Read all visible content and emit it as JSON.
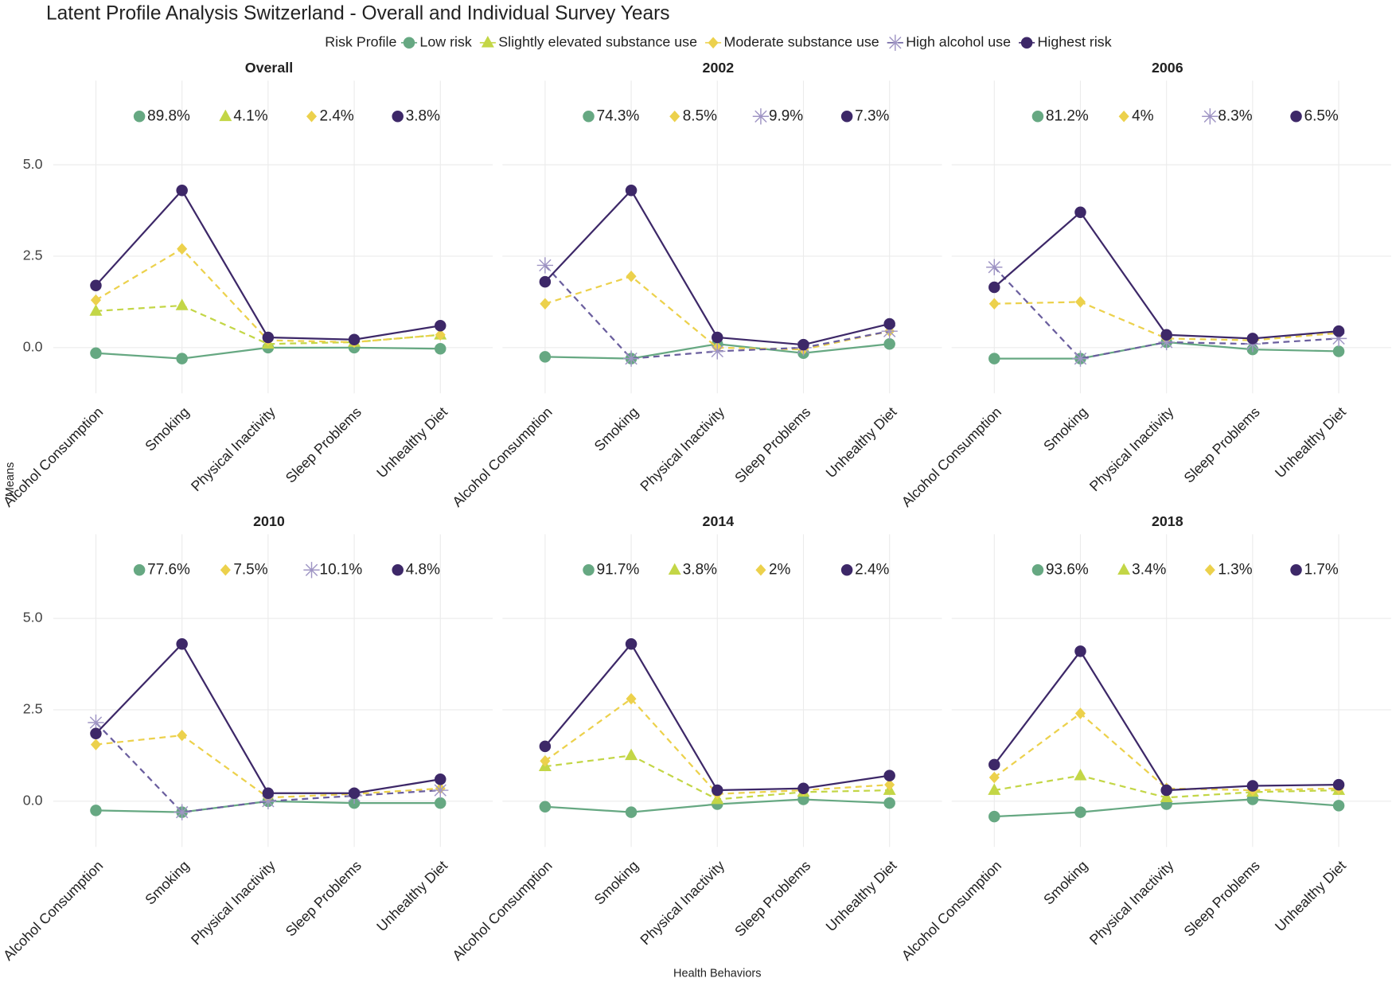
{
  "title": "Latent Profile Analysis Switzerland - Overall and Individual Survey Years",
  "legend_title": "Risk Profile",
  "x_label": "Health Behaviors",
  "y_label": "Means",
  "profiles": [
    {
      "name": "Low risk",
      "color": "#66a882",
      "shape": "circle",
      "dash": "solid"
    },
    {
      "name": "Slightly elevated substance use",
      "color": "#c3d646",
      "shape": "triangle",
      "dash": "dashed"
    },
    {
      "name": "Moderate substance use",
      "color": "#ecd14c",
      "shape": "diamond",
      "dash": "dashed"
    },
    {
      "name": "High alcohol use",
      "color": "#6a5e9e",
      "shape": "asterisk",
      "dash": "dashed"
    },
    {
      "name": "Highest risk",
      "color": "#3d2868",
      "shape": "circle",
      "dash": "solid"
    }
  ],
  "categories": [
    "Alcohol Consumption",
    "Smoking",
    "Physical Inactivity",
    "Sleep Problems",
    "Unhealthy Diet"
  ],
  "ylim": [
    -1.25,
    7.3
  ],
  "yticks": [
    {
      "value": 0,
      "label": "0.0"
    },
    2.5,
    {
      "value": 5,
      "label": "5.0"
    }
  ],
  "grid": true,
  "chart_data": [
    {
      "type": "line",
      "title": "Overall",
      "series": [
        {
          "values": [
            -0.15,
            -0.3,
            0,
            0,
            -0.03
          ],
          "share": 89.8,
          "share_label": "89.8%"
        },
        {
          "values": [
            1.0,
            1.15,
            0.1,
            0.15,
            0.35
          ],
          "share": 4.1,
          "share_label": "4.1%"
        },
        {
          "values": [
            1.3,
            2.7,
            0.2,
            0.15,
            0.35
          ],
          "share": 2.4,
          "share_label": "2.4%"
        },
        null,
        {
          "values": [
            1.7,
            4.3,
            0.28,
            0.22,
            0.6
          ],
          "share": 3.8,
          "share_label": "3.8%"
        }
      ]
    },
    {
      "type": "line",
      "title": "2002",
      "series": [
        {
          "values": [
            -0.25,
            -0.3,
            0.1,
            -0.15,
            0.1
          ],
          "share": 74.3,
          "share_label": "74.3%"
        },
        null,
        {
          "values": [
            1.2,
            1.95,
            0.0,
            -0.05,
            0.45
          ],
          "share": 8.5,
          "share_label": "8.5%"
        },
        {
          "values": [
            2.25,
            -0.3,
            -0.1,
            0.0,
            0.45
          ],
          "share": 9.9,
          "share_label": "9.9%"
        },
        {
          "values": [
            1.8,
            4.3,
            0.28,
            0.08,
            0.65
          ],
          "share": 7.3,
          "share_label": "7.3%"
        }
      ]
    },
    {
      "type": "line",
      "title": "2006",
      "series": [
        {
          "values": [
            -0.3,
            -0.3,
            0.15,
            -0.05,
            -0.1
          ],
          "share": 81.2,
          "share_label": "81.2%"
        },
        null,
        {
          "values": [
            1.2,
            1.25,
            0.25,
            0.2,
            0.4
          ],
          "share": 4,
          "share_label": "4%"
        },
        {
          "values": [
            2.2,
            -0.3,
            0.15,
            0.1,
            0.25
          ],
          "share": 8.3,
          "share_label": "8.3%"
        },
        {
          "values": [
            1.65,
            3.7,
            0.35,
            0.25,
            0.45
          ],
          "share": 6.5,
          "share_label": "6.5%"
        }
      ]
    },
    {
      "type": "line",
      "title": "2010",
      "series": [
        {
          "values": [
            -0.25,
            -0.3,
            0.0,
            -0.05,
            -0.05
          ],
          "share": 77.6,
          "share_label": "77.6%"
        },
        null,
        {
          "values": [
            1.55,
            1.8,
            0.1,
            0.2,
            0.35
          ],
          "share": 7.5,
          "share_label": "7.5%"
        },
        {
          "values": [
            2.15,
            -0.3,
            0.0,
            0.15,
            0.3
          ],
          "share": 10.1,
          "share_label": "10.1%"
        },
        {
          "values": [
            1.85,
            4.3,
            0.22,
            0.22,
            0.6
          ],
          "share": 4.8,
          "share_label": "4.8%"
        }
      ]
    },
    {
      "type": "line",
      "title": "2014",
      "series": [
        {
          "values": [
            -0.15,
            -0.3,
            -0.08,
            0.05,
            -0.05
          ],
          "share": 91.7,
          "share_label": "91.7%"
        },
        {
          "values": [
            0.95,
            1.25,
            0.05,
            0.25,
            0.3
          ],
          "share": 3.8,
          "share_label": "3.8%"
        },
        {
          "values": [
            1.1,
            2.8,
            0.2,
            0.3,
            0.45
          ],
          "share": 2,
          "share_label": "2%"
        },
        null,
        {
          "values": [
            1.5,
            4.3,
            0.3,
            0.35,
            0.7
          ],
          "share": 2.4,
          "share_label": "2.4%"
        }
      ]
    },
    {
      "type": "line",
      "title": "2018",
      "series": [
        {
          "values": [
            -0.42,
            -0.3,
            -0.08,
            0.05,
            -0.12
          ],
          "share": 93.6,
          "share_label": "93.6%"
        },
        {
          "values": [
            0.3,
            0.7,
            0.1,
            0.25,
            0.3
          ],
          "share": 3.4,
          "share_label": "3.4%"
        },
        {
          "values": [
            0.65,
            2.4,
            0.35,
            0.3,
            0.35
          ],
          "share": 1.3,
          "share_label": "1.3%"
        },
        null,
        {
          "values": [
            1.0,
            4.1,
            0.3,
            0.42,
            0.45
          ],
          "share": 1.7,
          "share_label": "1.7%"
        }
      ]
    }
  ]
}
